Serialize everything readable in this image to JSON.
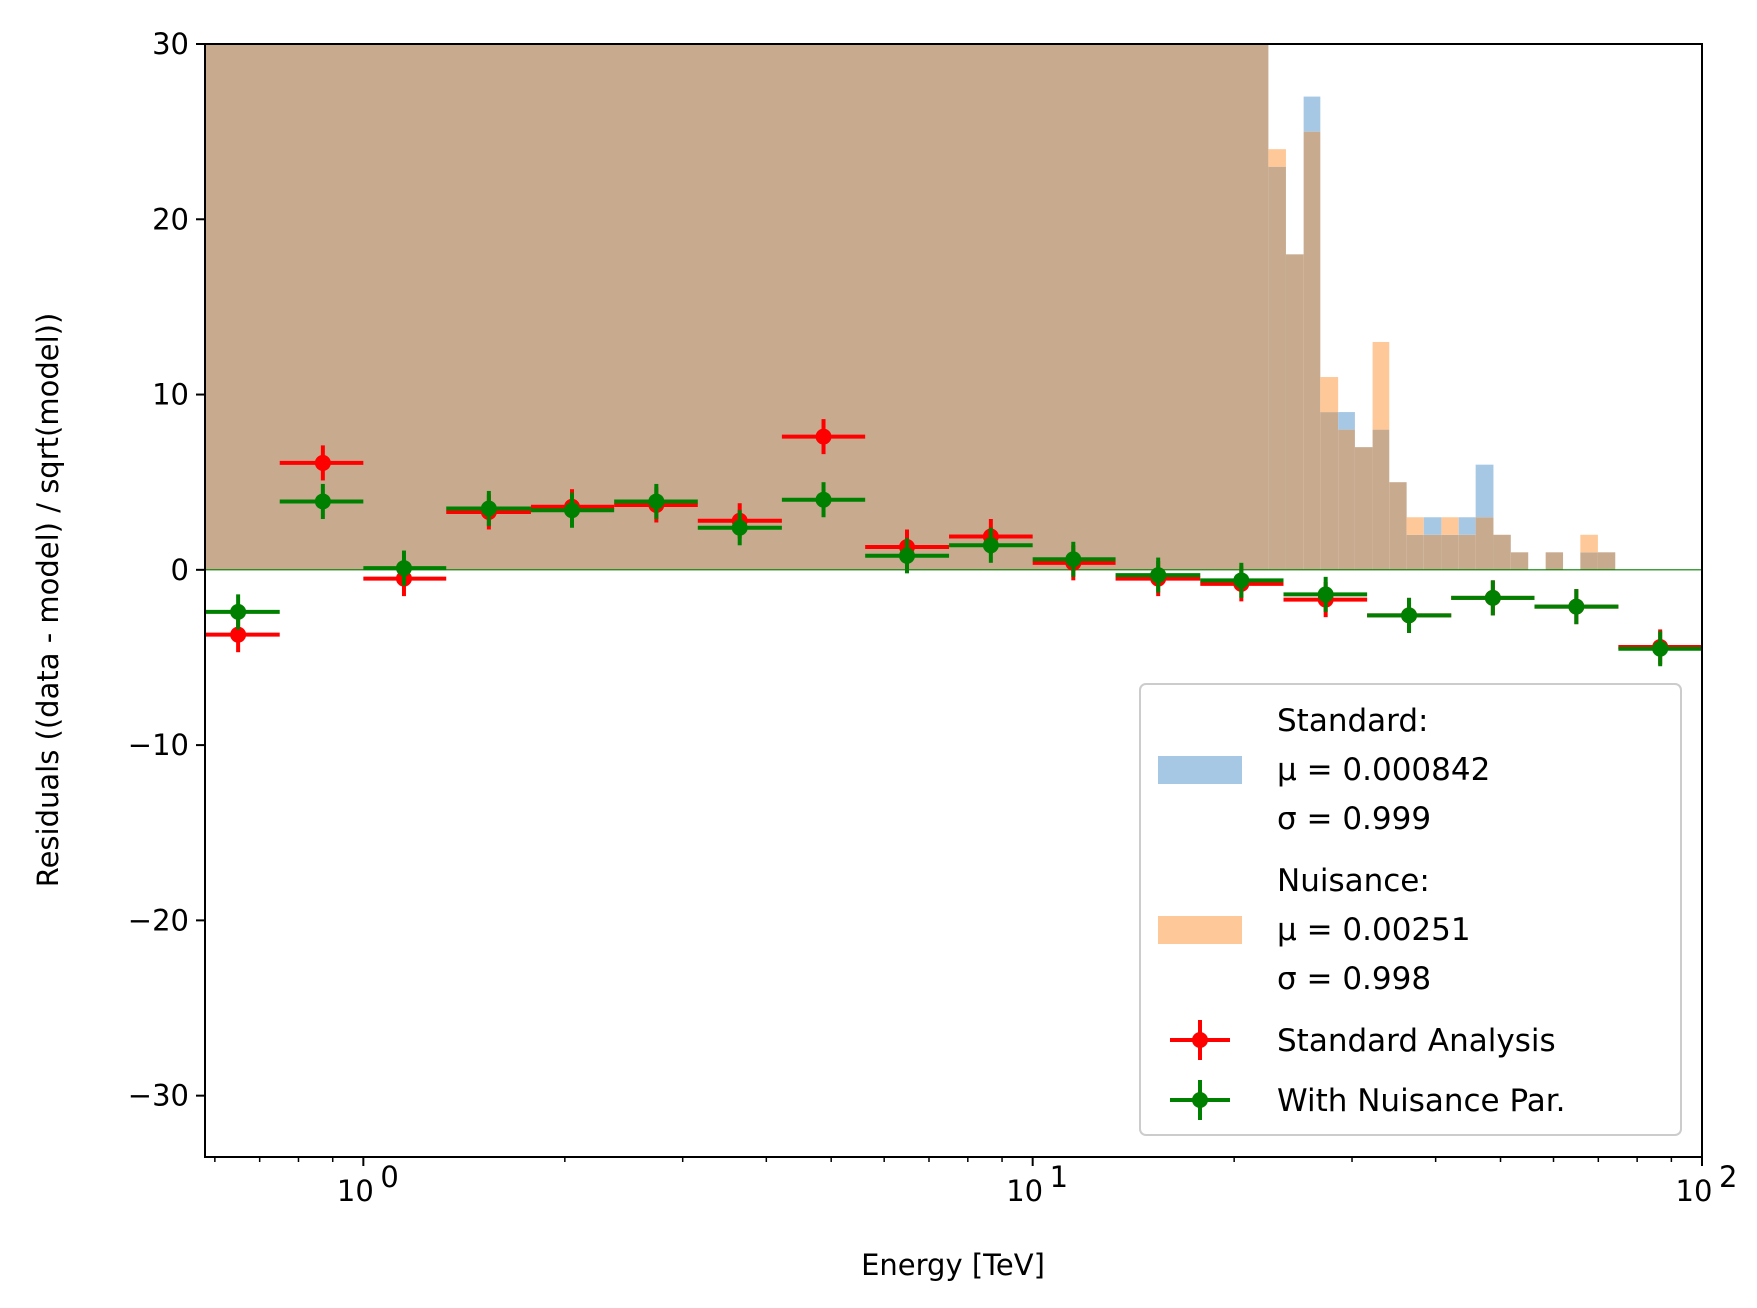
{
  "chart_data": {
    "type": "scatter",
    "xlabel": "Energy [TeV]",
    "ylabel": "Residuals ((data - model) / sqrt(model))",
    "xscale": "log",
    "xlim": [
      0.58,
      100
    ],
    "ylim": [
      -33.5,
      30
    ],
    "x_ticks": [
      {
        "value": 1,
        "label": "10",
        "exp": "0"
      },
      {
        "value": 10,
        "label": "10",
        "exp": "1"
      },
      {
        "value": 100,
        "label": "10",
        "exp": "2"
      }
    ],
    "y_ticks": [
      {
        "value": 30,
        "label": "30"
      },
      {
        "value": 20,
        "label": "20"
      },
      {
        "value": 10,
        "label": "10"
      },
      {
        "value": 0,
        "label": "0"
      },
      {
        "value": -10,
        "label": "−10"
      },
      {
        "value": -20,
        "label": "−20"
      },
      {
        "value": -30,
        "label": "−30"
      }
    ],
    "zero_line": {
      "value": 0,
      "color": "#008000"
    },
    "histograms": [
      {
        "name": "Standard",
        "color": "#a6c8e4",
        "mu_text": "μ = 0.000842",
        "sigma_text": "σ = 0.999",
        "bins": [
          {
            "x0": 22.5,
            "x1": 23.9,
            "y": 23
          },
          {
            "x0": 23.9,
            "x1": 25.4,
            "y": 18
          },
          {
            "x0": 25.4,
            "x1": 26.9,
            "y": 27
          },
          {
            "x0": 26.9,
            "x1": 28.6,
            "y": 9
          },
          {
            "x0": 28.6,
            "x1": 30.3,
            "y": 9
          },
          {
            "x0": 30.3,
            "x1": 32.2,
            "y": 7
          },
          {
            "x0": 32.2,
            "x1": 34.1,
            "y": 8
          },
          {
            "x0": 34.1,
            "x1": 36.2,
            "y": 5
          },
          {
            "x0": 36.2,
            "x1": 38.4,
            "y": 2
          },
          {
            "x0": 38.4,
            "x1": 40.8,
            "y": 3
          },
          {
            "x0": 40.8,
            "x1": 43.3,
            "y": 2
          },
          {
            "x0": 43.3,
            "x1": 45.9,
            "y": 3
          },
          {
            "x0": 45.9,
            "x1": 48.8,
            "y": 6
          },
          {
            "x0": 48.8,
            "x1": 51.8,
            "y": 2
          },
          {
            "x0": 51.8,
            "x1": 55.0,
            "y": 1
          },
          {
            "x0": 58.4,
            "x1": 62.0,
            "y": 1
          },
          {
            "x0": 65.8,
            "x1": 69.9,
            "y": 1
          },
          {
            "x0": 69.9,
            "x1": 74.2,
            "y": 1
          }
        ]
      },
      {
        "name": "Nuisance",
        "color": "#ffc899",
        "mu_text": "μ = 0.00251",
        "sigma_text": "σ = 0.998",
        "bins": [
          {
            "x0": 22.5,
            "x1": 23.9,
            "y": 24
          },
          {
            "x0": 23.9,
            "x1": 25.4,
            "y": 18
          },
          {
            "x0": 25.4,
            "x1": 26.9,
            "y": 25
          },
          {
            "x0": 26.9,
            "x1": 28.6,
            "y": 11
          },
          {
            "x0": 28.6,
            "x1": 30.3,
            "y": 8
          },
          {
            "x0": 30.3,
            "x1": 32.2,
            "y": 7
          },
          {
            "x0": 32.2,
            "x1": 34.1,
            "y": 13
          },
          {
            "x0": 34.1,
            "x1": 36.2,
            "y": 5
          },
          {
            "x0": 36.2,
            "x1": 38.4,
            "y": 3
          },
          {
            "x0": 38.4,
            "x1": 40.8,
            "y": 2
          },
          {
            "x0": 40.8,
            "x1": 43.3,
            "y": 3
          },
          {
            "x0": 43.3,
            "x1": 45.9,
            "y": 2
          },
          {
            "x0": 45.9,
            "x1": 48.8,
            "y": 3
          },
          {
            "x0": 48.8,
            "x1": 51.8,
            "y": 2
          },
          {
            "x0": 51.8,
            "x1": 55.0,
            "y": 1
          },
          {
            "x0": 58.4,
            "x1": 62.0,
            "y": 1
          },
          {
            "x0": 65.8,
            "x1": 69.9,
            "y": 2
          },
          {
            "x0": 69.9,
            "x1": 74.2,
            "y": 1
          }
        ]
      }
    ],
    "histogram_overlap": {
      "color": "#c8ab8f",
      "x0": 0.58,
      "x1": 22.5,
      "y": 30
    },
    "series": [
      {
        "name": "Standard Analysis",
        "color": "#ff0000",
        "points": [
          {
            "x": 0.65,
            "y": -3.7,
            "xlo": 0.58,
            "xhi": 0.75,
            "yerr": 1.0
          },
          {
            "x": 0.87,
            "y": 6.1,
            "xlo": 0.75,
            "xhi": 1.0,
            "yerr": 1.0
          },
          {
            "x": 1.15,
            "y": -0.5,
            "xlo": 1.0,
            "xhi": 1.33,
            "yerr": 1.0
          },
          {
            "x": 1.54,
            "y": 3.3,
            "xlo": 1.33,
            "xhi": 1.78,
            "yerr": 1.0
          },
          {
            "x": 2.05,
            "y": 3.6,
            "xlo": 1.78,
            "xhi": 2.37,
            "yerr": 1.0
          },
          {
            "x": 2.74,
            "y": 3.7,
            "xlo": 2.37,
            "xhi": 3.16,
            "yerr": 1.0
          },
          {
            "x": 3.65,
            "y": 2.8,
            "xlo": 3.16,
            "xhi": 4.22,
            "yerr": 1.0
          },
          {
            "x": 4.87,
            "y": 7.6,
            "xlo": 4.22,
            "xhi": 5.62,
            "yerr": 1.0
          },
          {
            "x": 6.49,
            "y": 1.3,
            "xlo": 5.62,
            "xhi": 7.5,
            "yerr": 1.0
          },
          {
            "x": 8.66,
            "y": 1.9,
            "xlo": 7.5,
            "xhi": 10.0,
            "yerr": 1.0
          },
          {
            "x": 11.5,
            "y": 0.4,
            "xlo": 10.0,
            "xhi": 13.3,
            "yerr": 1.0
          },
          {
            "x": 15.4,
            "y": -0.5,
            "xlo": 13.3,
            "xhi": 17.8,
            "yerr": 1.0
          },
          {
            "x": 20.5,
            "y": -0.8,
            "xlo": 17.8,
            "xhi": 23.7,
            "yerr": 1.0
          },
          {
            "x": 27.4,
            "y": -1.7,
            "xlo": 23.7,
            "xhi": 31.6,
            "yerr": 1.0
          },
          {
            "x": 36.5,
            "y": -2.6,
            "xlo": 31.6,
            "xhi": 42.2,
            "yerr": 1.0
          },
          {
            "x": 48.7,
            "y": -1.6,
            "xlo": 42.2,
            "xhi": 56.2,
            "yerr": 1.0
          },
          {
            "x": 64.9,
            "y": -2.1,
            "xlo": 56.2,
            "xhi": 75.0,
            "yerr": 1.0
          },
          {
            "x": 86.6,
            "y": -4.4,
            "xlo": 75.0,
            "xhi": 100.0,
            "yerr": 1.0
          }
        ]
      },
      {
        "name": "With Nuisance Par.",
        "color": "#008000",
        "points": [
          {
            "x": 0.65,
            "y": -2.4,
            "xlo": 0.58,
            "xhi": 0.75,
            "yerr": 1.0
          },
          {
            "x": 0.87,
            "y": 3.9,
            "xlo": 0.75,
            "xhi": 1.0,
            "yerr": 1.0
          },
          {
            "x": 1.15,
            "y": 0.1,
            "xlo": 1.0,
            "xhi": 1.33,
            "yerr": 1.0
          },
          {
            "x": 1.54,
            "y": 3.5,
            "xlo": 1.33,
            "xhi": 1.78,
            "yerr": 1.0
          },
          {
            "x": 2.05,
            "y": 3.4,
            "xlo": 1.78,
            "xhi": 2.37,
            "yerr": 1.0
          },
          {
            "x": 2.74,
            "y": 3.9,
            "xlo": 2.37,
            "xhi": 3.16,
            "yerr": 1.0
          },
          {
            "x": 3.65,
            "y": 2.4,
            "xlo": 3.16,
            "xhi": 4.22,
            "yerr": 1.0
          },
          {
            "x": 4.87,
            "y": 4.0,
            "xlo": 4.22,
            "xhi": 5.62,
            "yerr": 1.0
          },
          {
            "x": 6.49,
            "y": 0.8,
            "xlo": 5.62,
            "xhi": 7.5,
            "yerr": 1.0
          },
          {
            "x": 8.66,
            "y": 1.4,
            "xlo": 7.5,
            "xhi": 10.0,
            "yerr": 1.0
          },
          {
            "x": 11.5,
            "y": 0.6,
            "xlo": 10.0,
            "xhi": 13.3,
            "yerr": 1.0
          },
          {
            "x": 15.4,
            "y": -0.3,
            "xlo": 13.3,
            "xhi": 17.8,
            "yerr": 1.0
          },
          {
            "x": 20.5,
            "y": -0.6,
            "xlo": 17.8,
            "xhi": 23.7,
            "yerr": 1.0
          },
          {
            "x": 27.4,
            "y": -1.4,
            "xlo": 23.7,
            "xhi": 31.6,
            "yerr": 1.0
          },
          {
            "x": 36.5,
            "y": -2.6,
            "xlo": 31.6,
            "xhi": 42.2,
            "yerr": 1.0
          },
          {
            "x": 48.7,
            "y": -1.6,
            "xlo": 42.2,
            "xhi": 56.2,
            "yerr": 1.0
          },
          {
            "x": 64.9,
            "y": -2.1,
            "xlo": 56.2,
            "xhi": 75.0,
            "yerr": 1.0
          },
          {
            "x": 86.6,
            "y": -4.5,
            "xlo": 75.0,
            "xhi": 100.0,
            "yerr": 1.0
          }
        ]
      }
    ],
    "legend": {
      "location": "lower right",
      "hist_entries": [
        {
          "title": "Standard:",
          "mu": "μ = 0.000842",
          "sigma": "σ = 0.999",
          "color": "#a6c8e4"
        },
        {
          "title": "Nuisance:",
          "mu": "μ = 0.00251",
          "sigma": "σ = 0.998",
          "color": "#ffc899"
        }
      ],
      "series_entries": [
        {
          "label": "Standard Analysis",
          "color": "#ff0000"
        },
        {
          "label": "With Nuisance Par.",
          "color": "#008000"
        }
      ]
    }
  }
}
